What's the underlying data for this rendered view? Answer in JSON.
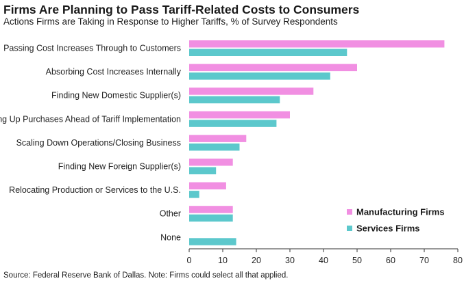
{
  "chart_data": {
    "type": "bar",
    "orientation": "horizontal",
    "title": "Firms Are Planning to Pass Tariff-Related Costs to Consumers",
    "subtitle": "Actions Firms are Taking in Response to Higher Tariffs, % of Survey Respondents",
    "categories": [
      "Passing Cost Increases Through to Customers",
      "Absorbing Cost Increases Internally",
      "Finding New Domestic Supplier(s)",
      "Moving Up Purchases Ahead of Tariff Implementation",
      "Scaling Down Operations/Closing Business",
      "Finding New Foreign Supplier(s)",
      "Relocating Production or Services to the U.S.",
      "Other",
      "None"
    ],
    "series": [
      {
        "name": "Manufacturing Firms",
        "color": "#f18fe2",
        "values": [
          76,
          50,
          37,
          30,
          17,
          13,
          11,
          13,
          0
        ]
      },
      {
        "name": "Services Firms",
        "color": "#5cc8cc",
        "values": [
          47,
          42,
          27,
          26,
          15,
          8,
          3,
          13,
          14
        ]
      }
    ],
    "xlim": [
      0,
      80
    ],
    "xticks": [
      "0",
      "10",
      "20",
      "30",
      "40",
      "50",
      "60",
      "70",
      "80"
    ],
    "xlabel": "",
    "ylabel": "",
    "grid": false,
    "legend_position": "bottom-right"
  },
  "source_note": "Source: Federal Reserve Bank of Dallas. Note: Firms could select all that applied."
}
